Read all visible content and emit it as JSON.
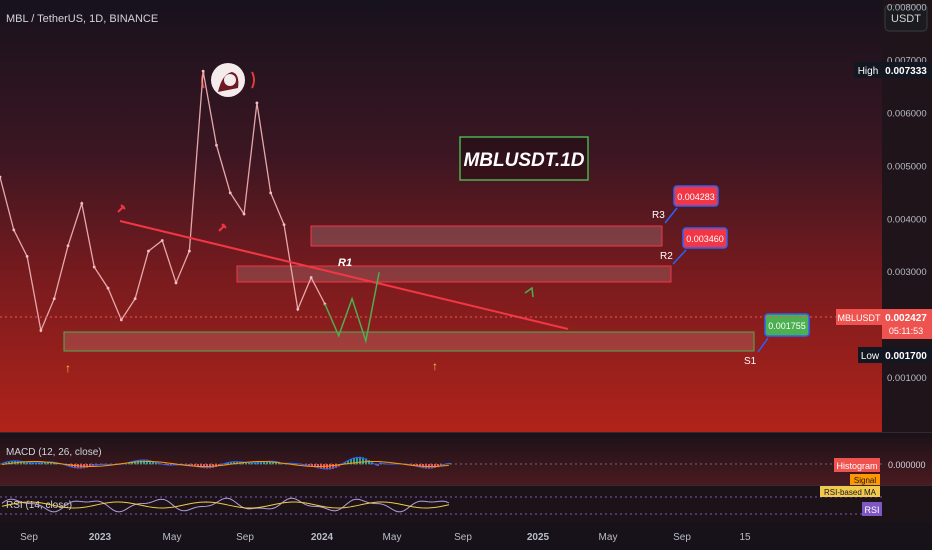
{
  "header": {
    "symbol_title": "MBL / TetherUS, 1D, BINANCE",
    "currency_button": "USDT"
  },
  "watermark": {
    "title": "MBLUSDT.1D"
  },
  "price_axis": {
    "ticks": [
      "0.001000",
      "0.002000",
      "0.003000",
      "0.004000",
      "0.005000",
      "0.006000",
      "0.007000",
      "0.008000"
    ],
    "high_label": "High",
    "high_value": "0.007333",
    "low_label": "Low",
    "low_value": "0.001700",
    "current_symbol": "MBLUSDT",
    "current_value": "0.002427",
    "countdown": "05:11:53"
  },
  "levels": {
    "r3": {
      "label": "R3",
      "callout": "0.004283"
    },
    "r2": {
      "label": "R2",
      "callout": "0.003460"
    },
    "r1": {
      "label": "R1"
    },
    "s1": {
      "label": "S1",
      "callout": "0.001755"
    }
  },
  "time_axis": {
    "labels": [
      "Sep",
      "2023",
      "May",
      "Sep",
      "2024",
      "May",
      "Sep",
      "2025",
      "May",
      "Sep",
      "15"
    ]
  },
  "macd": {
    "title": "MACD (12, 26, close)",
    "histogram_label": "Histogram",
    "signal_label": "Signal",
    "zero_value": "0.000000"
  },
  "rsi": {
    "title": "RSI (14, close)",
    "ma_label": "RSI-based MA",
    "rsi_label": "RSI"
  },
  "colors": {
    "resistance": "#f23645",
    "support": "#4caf50",
    "bull": "#26a69a",
    "bear": "#ef5350",
    "projection": "#4caf50"
  },
  "chart_data": {
    "type": "line",
    "xlabel": "",
    "ylabel": "",
    "x": [
      "2022-08-01",
      "2022-09-01",
      "2022-10-01",
      "2022-11-01",
      "2022-12-01",
      "2023-01-01",
      "2023-02-01",
      "2023-03-01",
      "2023-04-01",
      "2023-05-01",
      "2023-06-01",
      "2023-07-01",
      "2023-08-01",
      "2023-09-01",
      "2023-10-01",
      "2023-11-01",
      "2023-12-01",
      "2024-01-01",
      "2024-02-01",
      "2024-03-01",
      "2024-04-01",
      "2024-05-01",
      "2024-06-01",
      "2024-07-01",
      "2024-08-01"
    ],
    "series": [
      {
        "values": [
          0.0048,
          0.0038,
          0.0033,
          0.0019,
          0.0025,
          0.0035,
          0.0043,
          0.0031,
          0.0027,
          0.0021,
          0.0025,
          0.0034,
          0.0036,
          0.0028,
          0.0034,
          0.0068,
          0.0054,
          0.0045,
          0.0041,
          0.0062,
          0.0045,
          0.0039,
          0.0023,
          0.0029,
          0.0024
        ]
      }
    ],
    "projection": {
      "x": [
        "2024-08-01",
        "2024-09-01",
        "2024-10-01",
        "2024-11-01",
        "2024-12-01"
      ],
      "values": [
        0.0024,
        0.0018,
        0.0025,
        0.0017,
        0.003
      ]
    },
    "ylim": [
      0.0,
      0.008
    ],
    "grid": false,
    "legend": "none"
  }
}
